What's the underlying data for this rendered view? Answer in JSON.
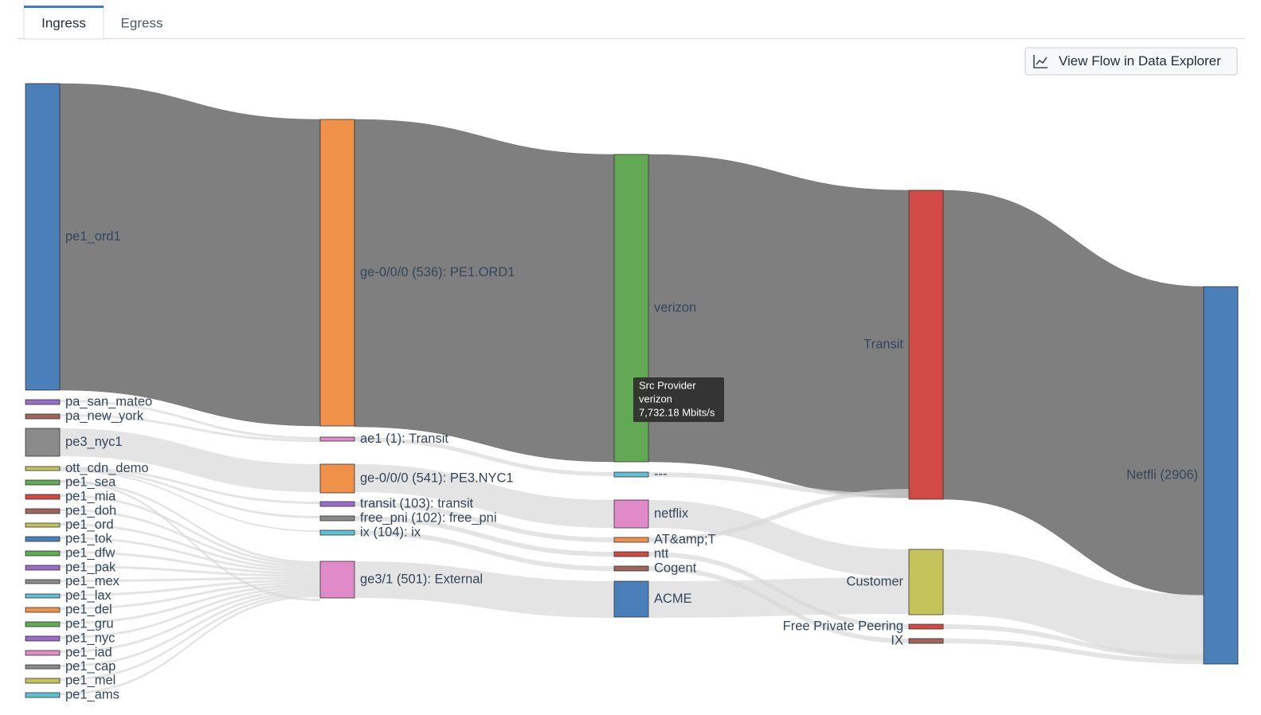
{
  "tabs": [
    "Ingress",
    "Egress"
  ],
  "button": "View Flow in Data Explorer",
  "nodes": [
    {
      "label": "pe1_ord1"
    },
    {
      "label": "pa_san_mateo"
    },
    {
      "label": "pa_new_york"
    },
    {
      "label": "pe3_nyc1"
    },
    {
      "label": "ott_cdn_demo"
    },
    {
      "label": "pe1_sea"
    },
    {
      "label": "pe1_mia"
    },
    {
      "label": "pe1_doh"
    },
    {
      "label": "pe1_ord"
    },
    {
      "label": "pe1_tok"
    },
    {
      "label": "pe1_dfw"
    },
    {
      "label": "pe1_pak"
    },
    {
      "label": "pe1_mex"
    },
    {
      "label": "pe1_lax"
    },
    {
      "label": "pe1_del"
    },
    {
      "label": "pe1_gru"
    },
    {
      "label": "pe1_nyc"
    },
    {
      "label": "pe1_iad"
    },
    {
      "label": "pe1_cap"
    },
    {
      "label": "pe1_mel"
    },
    {
      "label": "pe1_ams"
    },
    {
      "label": "ge-0/0/0 (536): PE1.ORD1"
    },
    {
      "label": "ae1 (1): Transit"
    },
    {
      "label": "ge-0/0/0 (541): PE3.NYC1"
    },
    {
      "label": "transit (103): transit"
    },
    {
      "label": "free_pni (102): free_pni"
    },
    {
      "label": "ix (104): ix"
    },
    {
      "label": "ge3/1 (501): External"
    },
    {
      "label": "verizon"
    },
    {
      "label": "---"
    },
    {
      "label": "netflix"
    },
    {
      "label": "AT&amp;T"
    },
    {
      "label": "ntt"
    },
    {
      "label": "Cogent"
    },
    {
      "label": "ACME"
    },
    {
      "label": "Transit"
    },
    {
      "label": "Customer"
    },
    {
      "label": "Free Private Peering"
    },
    {
      "label": "IX"
    },
    {
      "label": "Netfli (2906)"
    }
  ],
  "tooltip": {
    "title": "Src Provider",
    "name": "verizon",
    "value": "7,732.18 Mbits/s"
  }
}
